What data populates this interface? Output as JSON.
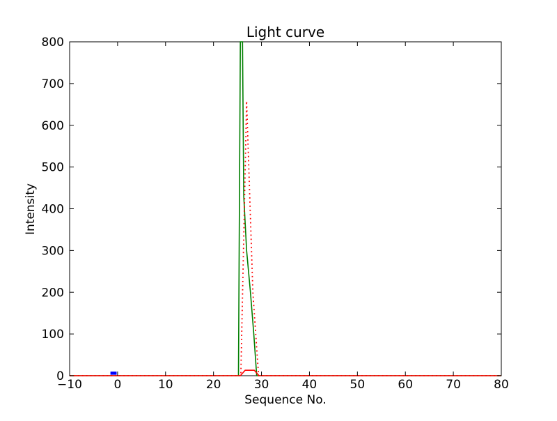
{
  "figure": {
    "background": "#ffffff",
    "frame_color": "#000000",
    "tick_color": "#000000"
  },
  "chart_data": {
    "type": "line",
    "title": "Light curve",
    "xlabel": "Sequence No.",
    "ylabel": "Intensity",
    "xlim": [
      -10,
      80
    ],
    "ylim": [
      0,
      800
    ],
    "x_ticks": [
      -10,
      0,
      10,
      20,
      30,
      40,
      50,
      60,
      70,
      80
    ],
    "x_tick_labels": [
      "−10",
      "0",
      "10",
      "20",
      "30",
      "40",
      "50",
      "60",
      "70",
      "80"
    ],
    "y_ticks": [
      0,
      100,
      200,
      300,
      400,
      500,
      600,
      700,
      800
    ],
    "y_tick_labels": [
      "0",
      "100",
      "200",
      "300",
      "400",
      "500",
      "600",
      "700",
      "800"
    ],
    "grid": false,
    "legend": null,
    "tick_direction": "in",
    "series": [
      {
        "name": "green-solid-line",
        "color": "#007f00",
        "style": "solid",
        "line_width": 1.6,
        "points": [
          [
            -10,
            0
          ],
          [
            25.2,
            0
          ],
          [
            25.6,
            800
          ],
          [
            26.05,
            800
          ],
          [
            26.3,
            430
          ],
          [
            26.9,
            300
          ],
          [
            27.7,
            200
          ],
          [
            28.4,
            100
          ],
          [
            29.0,
            0
          ],
          [
            80,
            0
          ]
        ]
      },
      {
        "name": "red-dotted-line",
        "color": "#ff0000",
        "style": "dotted",
        "line_width": 1.8,
        "points": [
          [
            -10,
            0
          ],
          [
            25.7,
            0
          ],
          [
            26.9,
            658
          ],
          [
            28.2,
            200
          ],
          [
            29.4,
            0
          ],
          [
            80,
            0
          ]
        ]
      },
      {
        "name": "red-solid-line",
        "color": "#ff0000",
        "style": "solid",
        "line_width": 1.6,
        "points": [
          [
            -10,
            0
          ],
          [
            25.6,
            0
          ],
          [
            26.6,
            13
          ],
          [
            28.5,
            13
          ],
          [
            29.5,
            0
          ],
          [
            80,
            0
          ]
        ]
      },
      {
        "name": "blue-segment",
        "color": "#0000ff",
        "style": "solid",
        "line_width": 4.5,
        "points": [
          [
            -1.5,
            6
          ],
          [
            -0.2,
            6
          ]
        ]
      }
    ]
  }
}
